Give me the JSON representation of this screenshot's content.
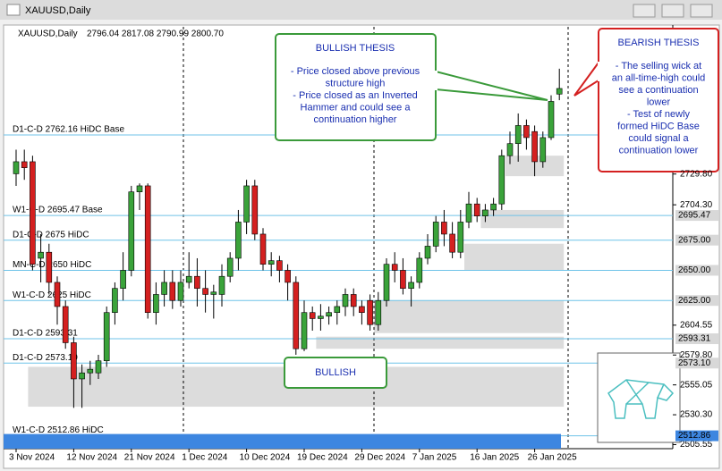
{
  "window_title": "XAUUSD,Daily",
  "chart_data": {
    "type": "candlestick",
    "title": "XAUUSD,Daily",
    "header_values": "2796.04 2817.08 2790.99 2800.70",
    "ylim": [
      2502.2,
      2851.8
    ],
    "yticks": [
      {
        "value": 2505.55,
        "label": "2505.55"
      },
      {
        "value": 2530.3,
        "label": "2530.30"
      },
      {
        "value": 2555.05,
        "label": "2555.05"
      },
      {
        "value": 2579.8,
        "label": "2579.80"
      },
      {
        "value": 2604.55,
        "label": "2604.55"
      },
      {
        "value": 2704.3,
        "label": "2704.30"
      },
      {
        "value": 2729.8,
        "label": "2729.80"
      }
    ],
    "up_color": "#3aa33a",
    "down_color": "#d42020",
    "categories": [
      "3 Nov 2024",
      null,
      null,
      null,
      null,
      null,
      null,
      "12 Nov 2024",
      null,
      null,
      null,
      null,
      null,
      null,
      "21 Nov 2024",
      null,
      null,
      null,
      null,
      null,
      null,
      "1 Dec 2024",
      null,
      null,
      null,
      null,
      null,
      null,
      "10 Dec 2024",
      null,
      null,
      null,
      null,
      null,
      null,
      "19 Dec 2024",
      null,
      null,
      null,
      null,
      null,
      null,
      "29 Dec 2024",
      null,
      null,
      null,
      null,
      null,
      null,
      "7 Jan 2025",
      null,
      null,
      null,
      null,
      null,
      null,
      "16 Jan 2025",
      null,
      null,
      null,
      null,
      null,
      null,
      "26 Jan 2025",
      null,
      null,
      null
    ],
    "candles": [
      {
        "open": 2730,
        "high": 2750,
        "low": 2720,
        "close": 2740
      },
      {
        "open": 2740,
        "high": 2750,
        "low": 2725,
        "close": 2735
      },
      {
        "open": 2740,
        "high": 2745,
        "low": 2650,
        "close": 2655
      },
      {
        "open": 2660,
        "high": 2680,
        "low": 2640,
        "close": 2665
      },
      {
        "open": 2665,
        "high": 2672,
        "low": 2630,
        "close": 2640
      },
      {
        "open": 2640,
        "high": 2645,
        "low": 2605,
        "close": 2620
      },
      {
        "open": 2620,
        "high": 2625,
        "low": 2585,
        "close": 2590
      },
      {
        "open": 2590,
        "high": 2595,
        "low": 2536,
        "close": 2560
      },
      {
        "open": 2560,
        "high": 2572,
        "low": 2536,
        "close": 2565
      },
      {
        "open": 2565,
        "high": 2575,
        "low": 2555,
        "close": 2568
      },
      {
        "open": 2565,
        "high": 2580,
        "low": 2560,
        "close": 2575
      },
      {
        "open": 2575,
        "high": 2620,
        "low": 2570,
        "close": 2615
      },
      {
        "open": 2615,
        "high": 2640,
        "low": 2605,
        "close": 2635
      },
      {
        "open": 2635,
        "high": 2665,
        "low": 2625,
        "close": 2650
      },
      {
        "open": 2650,
        "high": 2720,
        "low": 2645,
        "close": 2715
      },
      {
        "open": 2715,
        "high": 2722,
        "low": 2700,
        "close": 2720
      },
      {
        "open": 2720,
        "high": 2722,
        "low": 2610,
        "close": 2615
      },
      {
        "open": 2615,
        "high": 2640,
        "low": 2605,
        "close": 2630
      },
      {
        "open": 2630,
        "high": 2650,
        "low": 2620,
        "close": 2640
      },
      {
        "open": 2640,
        "high": 2650,
        "low": 2618,
        "close": 2625
      },
      {
        "open": 2625,
        "high": 2650,
        "low": 2620,
        "close": 2640
      },
      {
        "open": 2640,
        "high": 2665,
        "low": 2635,
        "close": 2645
      },
      {
        "open": 2645,
        "high": 2660,
        "low": 2620,
        "close": 2635
      },
      {
        "open": 2635,
        "high": 2650,
        "low": 2615,
        "close": 2630
      },
      {
        "open": 2630,
        "high": 2638,
        "low": 2610,
        "close": 2632
      },
      {
        "open": 2630,
        "high": 2655,
        "low": 2620,
        "close": 2645
      },
      {
        "open": 2645,
        "high": 2665,
        "low": 2640,
        "close": 2660
      },
      {
        "open": 2660,
        "high": 2700,
        "low": 2650,
        "close": 2690
      },
      {
        "open": 2690,
        "high": 2725,
        "low": 2680,
        "close": 2720
      },
      {
        "open": 2720,
        "high": 2725,
        "low": 2675,
        "close": 2680
      },
      {
        "open": 2680,
        "high": 2685,
        "low": 2650,
        "close": 2655
      },
      {
        "open": 2655,
        "high": 2665,
        "low": 2645,
        "close": 2658
      },
      {
        "open": 2658,
        "high": 2662,
        "low": 2640,
        "close": 2650
      },
      {
        "open": 2650,
        "high": 2655,
        "low": 2625,
        "close": 2640
      },
      {
        "open": 2640,
        "high": 2645,
        "low": 2580,
        "close": 2585
      },
      {
        "open": 2585,
        "high": 2625,
        "low": 2583,
        "close": 2615
      },
      {
        "open": 2615,
        "high": 2620,
        "low": 2600,
        "close": 2610
      },
      {
        "open": 2610,
        "high": 2622,
        "low": 2600,
        "close": 2612
      },
      {
        "open": 2612,
        "high": 2620,
        "low": 2605,
        "close": 2615
      },
      {
        "open": 2615,
        "high": 2625,
        "low": 2605,
        "close": 2620
      },
      {
        "open": 2620,
        "high": 2635,
        "low": 2612,
        "close": 2630
      },
      {
        "open": 2630,
        "high": 2635,
        "low": 2612,
        "close": 2620
      },
      {
        "open": 2620,
        "high": 2625,
        "low": 2605,
        "close": 2615
      },
      {
        "open": 2625,
        "high": 2630,
        "low": 2600,
        "close": 2605
      },
      {
        "open": 2605,
        "high": 2632,
        "low": 2600,
        "close": 2625
      },
      {
        "open": 2625,
        "high": 2660,
        "low": 2620,
        "close": 2655
      },
      {
        "open": 2655,
        "high": 2665,
        "low": 2640,
        "close": 2650
      },
      {
        "open": 2650,
        "high": 2660,
        "low": 2630,
        "close": 2635
      },
      {
        "open": 2635,
        "high": 2645,
        "low": 2620,
        "close": 2640
      },
      {
        "open": 2640,
        "high": 2665,
        "low": 2635,
        "close": 2660
      },
      {
        "open": 2660,
        "high": 2680,
        "low": 2655,
        "close": 2670
      },
      {
        "open": 2670,
        "high": 2695,
        "low": 2665,
        "close": 2690
      },
      {
        "open": 2690,
        "high": 2700,
        "low": 2670,
        "close": 2680
      },
      {
        "open": 2680,
        "high": 2690,
        "low": 2660,
        "close": 2665
      },
      {
        "open": 2665,
        "high": 2700,
        "low": 2660,
        "close": 2690
      },
      {
        "open": 2690,
        "high": 2715,
        "low": 2685,
        "close": 2705
      },
      {
        "open": 2705,
        "high": 2710,
        "low": 2690,
        "close": 2695
      },
      {
        "open": 2695,
        "high": 2705,
        "low": 2690,
        "close": 2700
      },
      {
        "open": 2700,
        "high": 2710,
        "low": 2695,
        "close": 2705
      },
      {
        "open": 2705,
        "high": 2750,
        "low": 2700,
        "close": 2745
      },
      {
        "open": 2745,
        "high": 2765,
        "low": 2738,
        "close": 2755
      },
      {
        "open": 2755,
        "high": 2780,
        "low": 2740,
        "close": 2770
      },
      {
        "open": 2770,
        "high": 2775,
        "low": 2750,
        "close": 2760
      },
      {
        "open": 2765,
        "high": 2770,
        "low": 2728,
        "close": 2740
      },
      {
        "open": 2740,
        "high": 2765,
        "low": 2735,
        "close": 2760
      },
      {
        "open": 2760,
        "high": 2795,
        "low": 2758,
        "close": 2790
      },
      {
        "open": 2796.04,
        "high": 2817.08,
        "low": 2790.99,
        "close": 2800.7
      }
    ],
    "zones": [
      {
        "from": 60,
        "to": 66,
        "low": 2728,
        "high": 2745
      },
      {
        "from": 57,
        "to": 66,
        "low": 2685,
        "high": 2700
      },
      {
        "from": 55,
        "to": 66,
        "low": 2650,
        "high": 2672
      },
      {
        "from": 44,
        "to": 66,
        "low": 2598,
        "high": 2625
      },
      {
        "from": 37,
        "to": 66,
        "low": 2585,
        "high": 2595
      },
      {
        "from": 2,
        "to": 66,
        "low": 2537,
        "high": 2570
      }
    ],
    "levels": [
      {
        "label": "D1-C-D 2762.16 HiDC Base",
        "value": 2762.16
      },
      {
        "label": "W1-C-D 2695.47 Base",
        "value": 2695.47,
        "tag": "2695.47"
      },
      {
        "label": "D1-C-D 2675 HiDC",
        "value": 2675,
        "tag": "2675.00"
      },
      {
        "label": "MN-C-D 2650 HiDC",
        "value": 2650,
        "tag": "2650.00"
      },
      {
        "label": "W1-C-D 2625 HiDC",
        "value": 2625,
        "tag": "2625.00"
      },
      {
        "label": "D1-C-D 2593.31",
        "value": 2593.31,
        "tag": "2593.31"
      },
      {
        "label": "D1-C-D 2573.10",
        "value": 2573.1,
        "tag": "2573.10"
      },
      {
        "label": "W1-C-D 2512.86 HiDC",
        "value": 2512.86,
        "tag": "2512.86"
      }
    ]
  },
  "annotations": {
    "bullish_thesis": {
      "title": "BULLISH THESIS",
      "lines": [
        "- Price closed above previous",
        "structure high",
        "- Price closed as an Inverted",
        "Hammer and could see a",
        "continuation higher"
      ]
    },
    "bearish_thesis": {
      "title": "BEARISH THESIS",
      "lines": [
        "- The selling wick at",
        "an all-time-high could",
        "see a continuation",
        "lower",
        "- Test of newly",
        "formed HiDC Base",
        "could signal a",
        "continuation lower"
      ]
    },
    "bullish": "BULLISH"
  }
}
